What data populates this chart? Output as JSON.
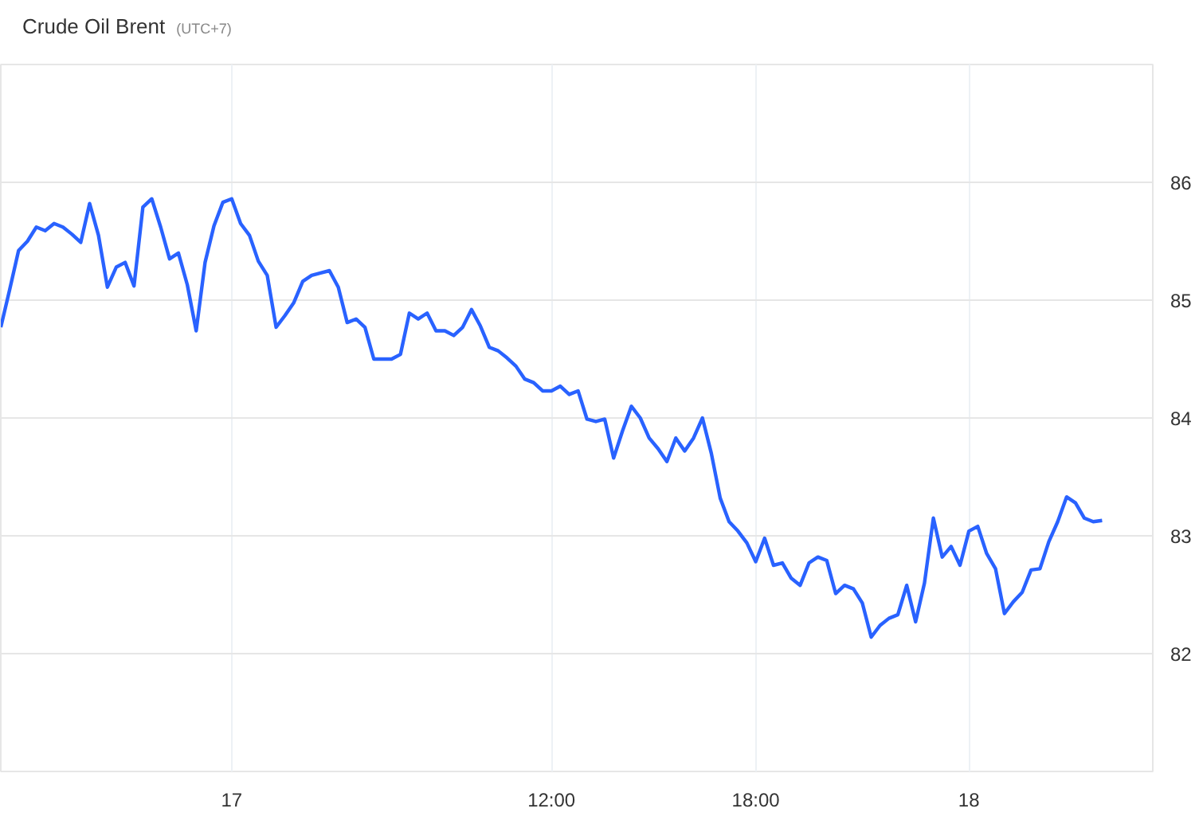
{
  "chart_data": {
    "type": "line",
    "title": "Crude Oil Brent",
    "subtitle": "(UTC+7)",
    "categories": [
      null,
      null,
      null,
      null,
      null,
      null,
      null,
      null,
      null,
      null,
      null,
      null,
      null,
      null,
      null,
      null,
      null,
      null,
      null,
      null,
      null,
      null,
      null,
      null,
      null,
      null,
      "17",
      null,
      null,
      null,
      null,
      null,
      null,
      null,
      null,
      null,
      null,
      null,
      null,
      null,
      null,
      null,
      null,
      null,
      null,
      null,
      null,
      null,
      null,
      null,
      null,
      null,
      null,
      null,
      null,
      null,
      null,
      null,
      null,
      null,
      null,
      null,
      "12:00",
      null,
      null,
      null,
      null,
      null,
      null,
      null,
      null,
      null,
      null,
      null,
      null,
      null,
      null,
      null,
      null,
      null,
      null,
      null,
      null,
      null,
      null,
      "18:00",
      null,
      null,
      null,
      null,
      null,
      null,
      null,
      null,
      null,
      null,
      null,
      null,
      null,
      null,
      null,
      null,
      null,
      null,
      null,
      null,
      null,
      null,
      null,
      "18",
      null,
      null,
      null,
      null,
      null,
      null,
      null,
      null,
      null,
      null,
      null,
      null,
      null,
      null,
      null
    ],
    "series": [
      {
        "color": "#2962ff",
        "values": [
          84.77,
          85.09,
          85.42,
          85.5,
          85.62,
          85.59,
          85.65,
          85.62,
          85.56,
          85.49,
          85.82,
          85.55,
          85.11,
          85.28,
          85.32,
          85.12,
          85.79,
          85.86,
          85.62,
          85.35,
          85.4,
          85.13,
          84.74,
          85.32,
          85.63,
          85.83,
          85.86,
          85.65,
          85.55,
          85.33,
          85.21,
          84.77,
          84.87,
          84.98,
          85.16,
          85.21,
          85.23,
          85.25,
          85.11,
          84.81,
          84.84,
          84.77,
          84.5,
          84.5,
          84.5,
          84.54,
          84.89,
          84.84,
          84.89,
          84.74,
          84.74,
          84.7,
          84.77,
          84.92,
          84.78,
          84.6,
          84.57,
          84.51,
          84.44,
          84.33,
          84.3,
          84.23,
          84.23,
          84.27,
          84.2,
          84.23,
          83.99,
          83.97,
          83.99,
          83.66,
          83.89,
          84.1,
          84.0,
          83.83,
          83.74,
          83.63,
          83.83,
          83.72,
          83.83,
          84.0,
          83.7,
          83.32,
          83.12,
          83.04,
          82.94,
          82.78,
          82.98,
          82.75,
          82.77,
          82.64,
          82.58,
          82.77,
          82.82,
          82.79,
          82.51,
          82.58,
          82.55,
          82.43,
          82.14,
          82.24,
          82.3,
          82.33,
          82.58,
          82.27,
          82.6,
          83.15,
          82.82,
          82.91,
          82.75,
          83.04,
          83.08,
          82.85,
          82.72,
          82.34,
          82.44,
          82.52,
          82.71,
          82.72,
          82.95,
          83.12,
          83.33,
          83.28,
          83.15,
          83.12,
          83.13
        ]
      }
    ],
    "ylim": [
      81,
      87
    ],
    "yticks": [
      82,
      83,
      84,
      85,
      86
    ],
    "grid": true,
    "marker": "none",
    "line_style": "solid"
  }
}
